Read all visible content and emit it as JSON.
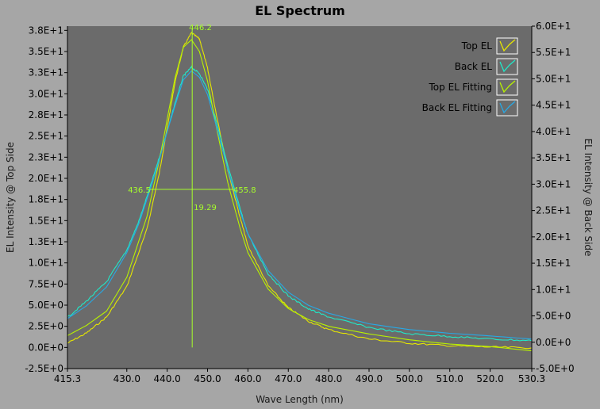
{
  "colors": {
    "background": "#a6a6a6",
    "plot_bg": "#6b6b6b",
    "top_el": "#e6e600",
    "back_el": "#20e8c8",
    "top_el_fitting": "#b8f200",
    "back_el_fitting": "#27a9e6",
    "annotation": "#a7ff2a"
  },
  "chart_data": {
    "type": "line",
    "title": "EL Spectrum",
    "xlabel": "Wave Length (nm)",
    "ylabel_left": "EL Intensity @ Top Side",
    "ylabel_right": "EL Intensity @ Back Side",
    "xlim": [
      415.3,
      530.3
    ],
    "ylim_left": [
      -2.5,
      38
    ],
    "ylim_right": [
      -5,
      60
    ],
    "x_ticks": [
      "415.3",
      "430.0",
      "440.0",
      "450.0",
      "460.0",
      "470.0",
      "480.0",
      "490.0",
      "500.0",
      "510.0",
      "520.0",
      "530.3"
    ],
    "x_tick_values": [
      415.3,
      430,
      440,
      450,
      460,
      470,
      480,
      490,
      500,
      510,
      520,
      530.3
    ],
    "y_left_ticks": [
      "-2.5E+0",
      "0.0E+0",
      "2.5E+0",
      "5.0E+0",
      "7.5E+0",
      "1.0E+1",
      "1.3E+1",
      "1.5E+1",
      "1.8E+1",
      "2.0E+1",
      "2.3E+1",
      "2.5E+1",
      "2.8E+1",
      "3.0E+1",
      "3.3E+1",
      "3.5E+1",
      "3.8E+1"
    ],
    "y_left_tick_values": [
      -2.5,
      0,
      2.5,
      5,
      7.5,
      10,
      12.5,
      15,
      17.5,
      20,
      22.5,
      25,
      27.5,
      30,
      32.5,
      35,
      37.5
    ],
    "y_right_ticks": [
      "-5.0E+0",
      "0.0E+0",
      "5.0E+0",
      "1.0E+1",
      "1.5E+1",
      "2.0E+1",
      "2.5E+1",
      "3.0E+1",
      "3.5E+1",
      "4.0E+1",
      "4.5E+1",
      "5.0E+1",
      "5.5E+1",
      "6.0E+1"
    ],
    "y_right_tick_values": [
      -5,
      0,
      5,
      10,
      15,
      20,
      25,
      30,
      35,
      40,
      45,
      50,
      55,
      60
    ],
    "series": [
      {
        "name": "Top EL",
        "axis": "left",
        "noisy": true,
        "x": [
          415.3,
          420,
          425,
          430,
          435,
          438,
          440,
          442,
          444,
          446,
          448,
          450,
          452,
          455,
          458,
          460,
          465,
          470,
          475,
          480,
          490,
          500,
          510,
          520,
          530.3
        ],
        "y": [
          0.5,
          1.7,
          3.6,
          7.2,
          14,
          20.5,
          26,
          31.5,
          35.5,
          37.2,
          36.5,
          33,
          28,
          21,
          15.5,
          12,
          7.3,
          4.7,
          3.1,
          2.1,
          1,
          0.5,
          0.2,
          0.05,
          -0.05
        ]
      },
      {
        "name": "Back EL",
        "axis": "right",
        "noisy": true,
        "x": [
          415.3,
          420,
          425,
          430,
          433,
          436,
          438,
          440,
          442,
          444,
          446,
          448,
          450,
          452,
          455,
          458,
          460,
          465,
          470,
          475,
          480,
          490,
          500,
          510,
          520,
          530.3
        ],
        "y": [
          4.7,
          7.8,
          11.5,
          17.5,
          23,
          30,
          35,
          40,
          45.5,
          50.5,
          52.2,
          51,
          48,
          42.5,
          33.5,
          25.5,
          20.5,
          13,
          8.8,
          6.3,
          4.8,
          2.8,
          1.6,
          1.1,
          0.6,
          0.3
        ]
      },
      {
        "name": "Top EL Fitting",
        "axis": "left",
        "noisy": false,
        "x": [
          415.3,
          420,
          425,
          430,
          435,
          438,
          440,
          442,
          444,
          446,
          448,
          450,
          452,
          455,
          458,
          460,
          465,
          470,
          475,
          480,
          490,
          500,
          510,
          520,
          530.3
        ],
        "y": [
          1.4,
          2.6,
          4.3,
          8.3,
          15.5,
          22,
          27,
          32,
          35.5,
          36.4,
          35,
          31.5,
          26.5,
          19.5,
          14.2,
          11.2,
          6.9,
          4.6,
          3.3,
          2.5,
          1.6,
          0.9,
          0.4,
          0.1,
          -0.4
        ]
      },
      {
        "name": "Back EL Fitting",
        "axis": "right",
        "noisy": false,
        "x": [
          415.3,
          420,
          425,
          430,
          433,
          436,
          438,
          440,
          442,
          444,
          446,
          448,
          450,
          452,
          455,
          458,
          460,
          465,
          470,
          475,
          480,
          490,
          500,
          510,
          520,
          530.3
        ],
        "y": [
          4.5,
          6.9,
          10.5,
          17,
          22.5,
          29.5,
          34.5,
          40,
          45,
          49.8,
          51.5,
          50.3,
          47,
          41.5,
          32.8,
          25,
          20.6,
          13.6,
          9.5,
          7,
          5.5,
          3.5,
          2.4,
          1.7,
          1.2,
          0.6
        ]
      }
    ],
    "annotations": {
      "peak_x": 446.2,
      "peak_label": "446.2",
      "fwhm_y": 18.7,
      "fwhm_left_x": 436.5,
      "fwhm_left_label": "436.5",
      "fwhm_right_x": 455.8,
      "fwhm_right_label": "455.8",
      "fwhm_label": "19.29"
    },
    "legend_position": "top-right",
    "grid": false
  }
}
